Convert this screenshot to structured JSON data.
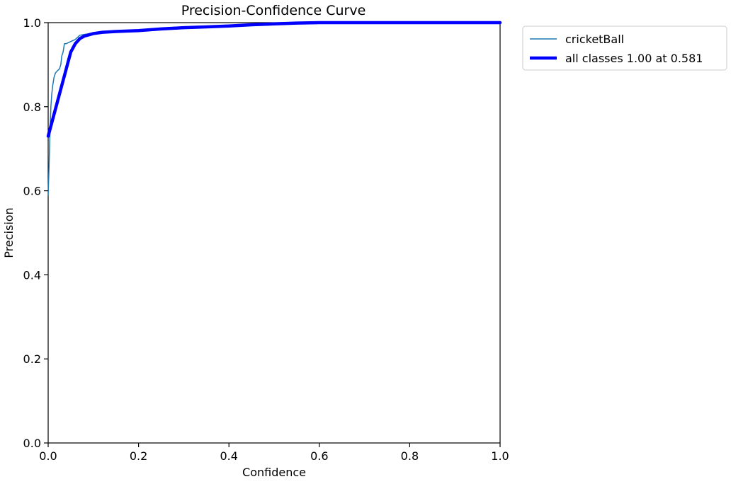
{
  "chart_data": {
    "type": "line",
    "title": "Precision-Confidence Curve",
    "xlabel": "Confidence",
    "ylabel": "Precision",
    "xlim": [
      0,
      1
    ],
    "ylim": [
      0,
      1
    ],
    "xticks": [
      "0.0",
      "0.2",
      "0.4",
      "0.6",
      "0.8",
      "1.0"
    ],
    "yticks": [
      "0.0",
      "0.2",
      "0.4",
      "0.6",
      "0.8",
      "1.0"
    ],
    "grid": false,
    "legend_position": "outside-top-right",
    "series": [
      {
        "name": "cricketBall",
        "color": "#1f77b4",
        "style": "thin",
        "x": [
          0.0,
          0.002,
          0.004,
          0.006,
          0.008,
          0.01,
          0.013,
          0.016,
          0.02,
          0.025,
          0.028,
          0.03,
          0.033,
          0.036,
          0.04,
          0.05,
          0.06,
          0.065,
          0.07,
          0.08,
          0.1,
          0.12,
          0.15,
          0.2,
          0.25,
          0.3,
          0.35,
          0.4,
          0.45,
          0.5,
          0.55,
          0.6,
          0.7,
          0.8,
          0.9,
          1.0
        ],
        "y": [
          0.59,
          0.66,
          0.74,
          0.8,
          0.83,
          0.85,
          0.87,
          0.88,
          0.885,
          0.89,
          0.9,
          0.92,
          0.93,
          0.95,
          0.95,
          0.955,
          0.96,
          0.965,
          0.97,
          0.972,
          0.975,
          0.977,
          0.979,
          0.982,
          0.986,
          0.989,
          0.991,
          0.993,
          0.995,
          0.997,
          0.998,
          0.999,
          1.0,
          1.0,
          1.0,
          1.0
        ]
      },
      {
        "name": "all classes 1.00 at 0.581",
        "color": "#0000ff",
        "style": "thick",
        "x": [
          0.0,
          0.01,
          0.02,
          0.03,
          0.04,
          0.05,
          0.055,
          0.06,
          0.07,
          0.08,
          0.1,
          0.12,
          0.15,
          0.2,
          0.25,
          0.3,
          0.35,
          0.4,
          0.45,
          0.5,
          0.55,
          0.6,
          0.7,
          0.8,
          0.9,
          1.0
        ],
        "y": [
          0.73,
          0.77,
          0.81,
          0.85,
          0.89,
          0.93,
          0.94,
          0.95,
          0.962,
          0.968,
          0.974,
          0.977,
          0.979,
          0.981,
          0.985,
          0.988,
          0.99,
          0.992,
          0.995,
          0.997,
          0.999,
          1.0,
          1.0,
          1.0,
          1.0,
          1.0
        ]
      }
    ]
  }
}
